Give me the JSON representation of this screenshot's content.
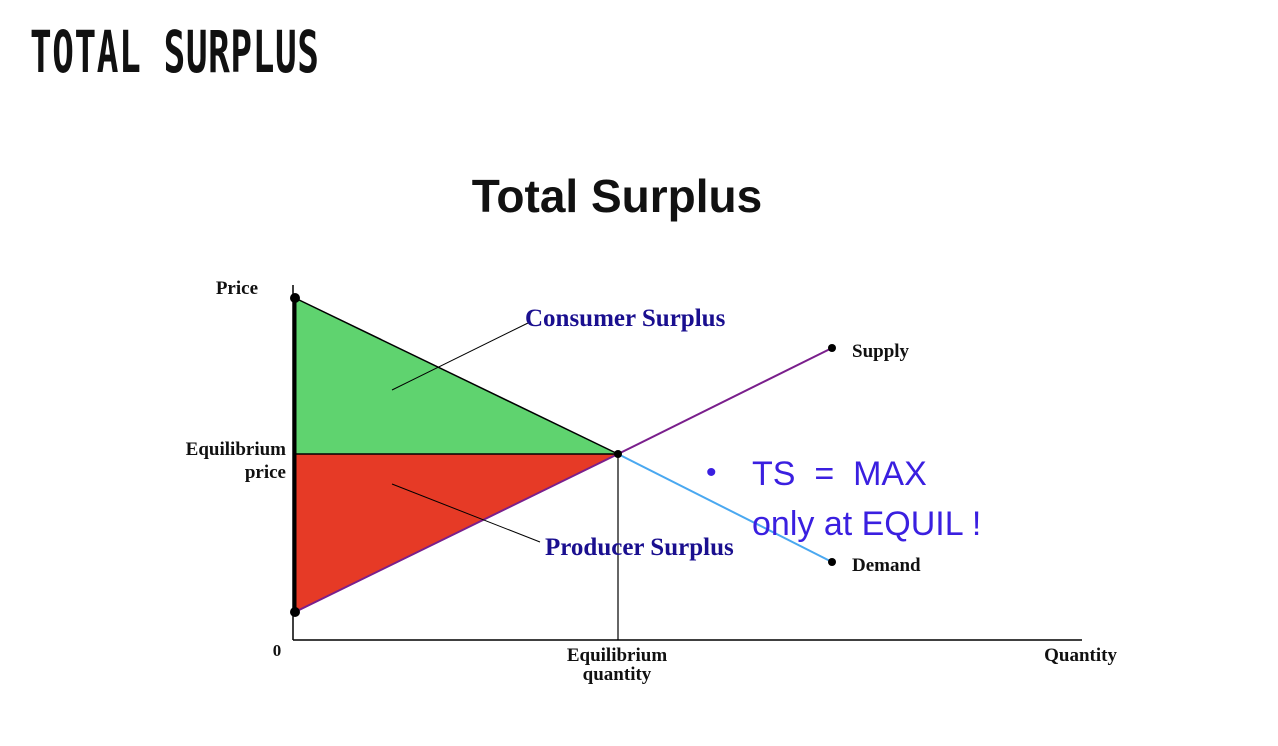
{
  "slide": {
    "title": "TOTAL SURPLUS"
  },
  "diagram": {
    "title": "Total Surplus",
    "y_axis_label": "Price",
    "x_axis_label": "Quantity",
    "origin_label": "0",
    "eq_price_line1": "Equilibrium",
    "eq_price_line2": "price",
    "eq_qty_line1": "Equilibrium",
    "eq_qty_line2": "quantity",
    "supply_label": "Supply",
    "demand_label": "Demand",
    "consumer_surplus_label": "Consumer Surplus",
    "producer_surplus_label": "Producer Surplus",
    "colors": {
      "consumer_surplus": "#5fd36f",
      "producer_surplus": "#e63a26",
      "supply_line": "#7a1f8c",
      "demand_line": "#4aa8f0",
      "label_text": "#1a0f8f",
      "annotation": "#3a1fe0"
    }
  },
  "annotation": {
    "bullet": "•",
    "line1": "TS  =  MAX",
    "line2": "only at EQUIL !"
  }
}
